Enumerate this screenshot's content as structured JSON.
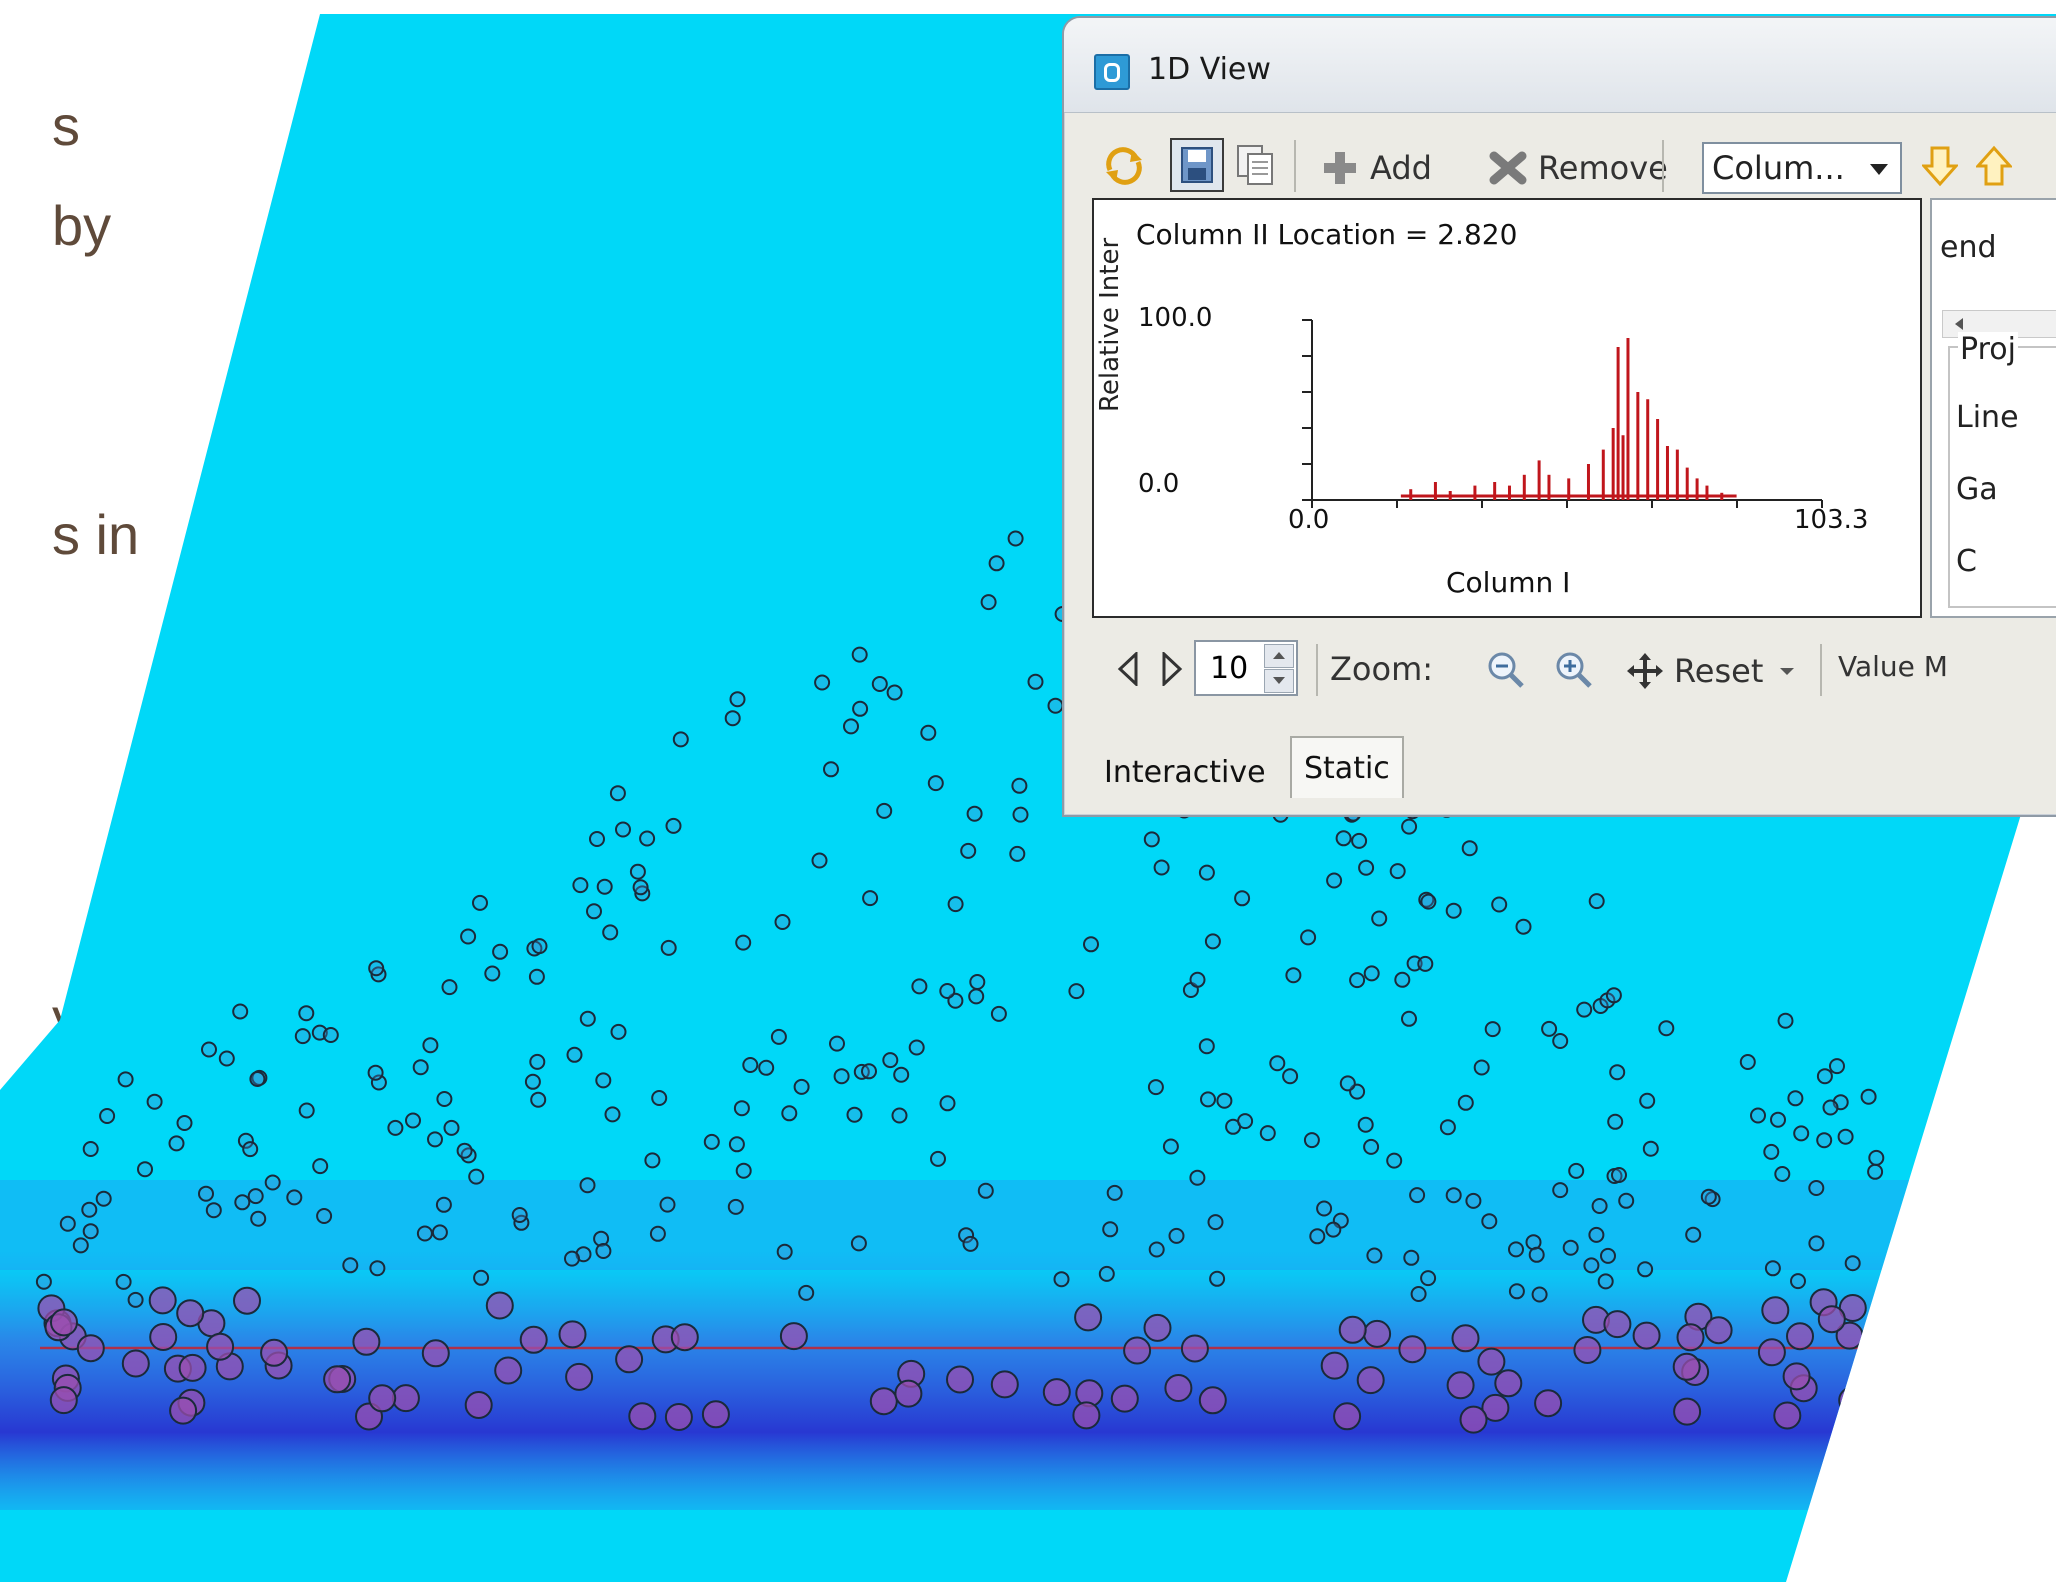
{
  "slide_fragments": [
    {
      "text": "s"
    },
    {
      "text": "by"
    },
    {
      "text": "s in"
    },
    {
      "text": "y"
    }
  ],
  "window": {
    "title": "1D View",
    "toolbar": {
      "add_label": "Add",
      "remove_label": "Remove",
      "column_select": "Colum..."
    },
    "chart": {
      "location_label": "Column II Location = 2.820",
      "ylabel": "Relative Inter",
      "xlabel": "Column I"
    },
    "right_panel": {
      "legend_label": "end",
      "group_label": "Proj",
      "items": [
        "Line",
        "Ga",
        "C"
      ]
    },
    "nav": {
      "page_value": "10",
      "zoom_label": "Zoom:",
      "reset_label": "Reset",
      "value_label": "Value M"
    },
    "tabs": [
      "Interactive",
      "Static"
    ]
  },
  "chart_data": {
    "type": "bar",
    "title": "Column II Location = 2.820",
    "xlabel": "Column I",
    "ylabel": "Relative Inter",
    "xlim": [
      0.0,
      103.3
    ],
    "ylim": [
      0.0,
      100.0
    ],
    "x_tick_labels": [
      "0.0",
      "103.3"
    ],
    "y_tick_labels": [
      "100.0",
      "0.0"
    ],
    "x": [
      20,
      25,
      28,
      33,
      37,
      40,
      43,
      46,
      48,
      52,
      56,
      59,
      61,
      62,
      63,
      64,
      66,
      68,
      70,
      72,
      74,
      76,
      78,
      80,
      83
    ],
    "values": [
      6,
      10,
      5,
      8,
      10,
      8,
      14,
      22,
      14,
      12,
      20,
      28,
      40,
      85,
      36,
      90,
      60,
      56,
      45,
      30,
      28,
      18,
      12,
      8,
      4
    ],
    "color": "#c0161c"
  },
  "colors": {
    "background_field": "#00d8f8",
    "window_bg": "#ecebe5",
    "spectrum": "#c0161c",
    "slide_text": "#5f4a3a"
  }
}
